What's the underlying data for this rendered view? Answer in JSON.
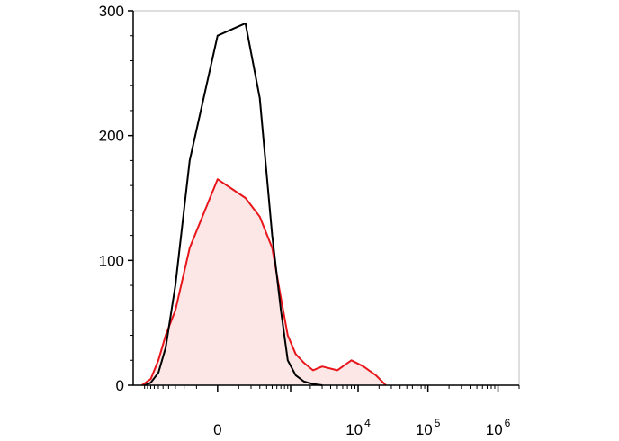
{
  "chart_data": {
    "type": "area",
    "title": "",
    "xlabel": "",
    "ylabel": "",
    "x_scale": "biexponential",
    "ylim": [
      0,
      300
    ],
    "y_ticks": [
      0,
      100,
      200,
      300
    ],
    "x_ticks": [
      {
        "value": 0,
        "label": "0",
        "sup": ""
      },
      {
        "value": 10000,
        "label": "10",
        "sup": "4"
      },
      {
        "value": 100000,
        "label": "10",
        "sup": "5"
      },
      {
        "value": 1000000,
        "label": "10",
        "sup": "6"
      }
    ],
    "grid": false,
    "legend": "none",
    "series": [
      {
        "color": "#000000",
        "fill": "none",
        "x": [
          -1000,
          -800,
          -600,
          -450,
          -300,
          -150,
          0,
          150,
          300,
          500,
          700,
          900,
          1200,
          1600,
          2200,
          3000
        ],
        "values": [
          0,
          2,
          10,
          30,
          80,
          180,
          280,
          290,
          230,
          120,
          60,
          20,
          8,
          3,
          1,
          0
        ]
      },
      {
        "color": "#e8161b",
        "fill": "#fce6e6",
        "x": [
          -1100,
          -800,
          -600,
          -450,
          -300,
          -150,
          0,
          150,
          300,
          500,
          700,
          900,
          1200,
          1600,
          2200,
          3000,
          5000,
          8000,
          12000,
          18000,
          25000
        ],
        "values": [
          0,
          5,
          20,
          40,
          60,
          110,
          165,
          150,
          135,
          110,
          70,
          40,
          25,
          18,
          12,
          15,
          12,
          20,
          15,
          8,
          0
        ]
      }
    ]
  }
}
